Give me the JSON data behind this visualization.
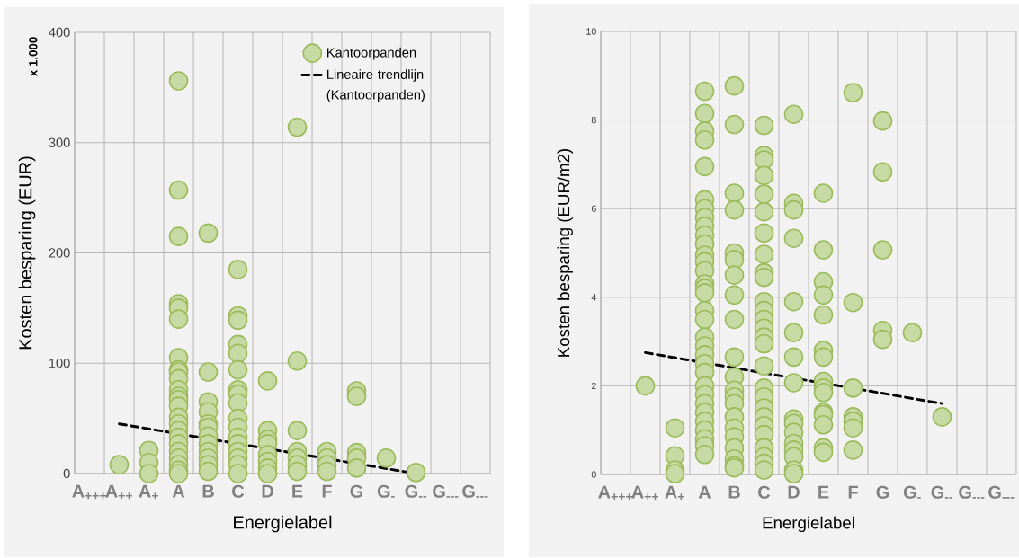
{
  "chart_data": [
    {
      "type": "scatter",
      "xlabel": "Energielabel",
      "ylabel": "Kosten besparing (EUR)",
      "annotations": [
        "x 1.000"
      ],
      "categories": [
        "A$_{+++}$",
        "A$_{++}$",
        "A$_{+}$",
        "A",
        "B",
        "C",
        "D",
        "E",
        "F",
        "G",
        "G$_{-}$",
        "G$_{--}$",
        "G$_{---}$",
        "G$_{---}$"
      ],
      "ylim": [
        0,
        400
      ],
      "yticks": [
        0,
        100,
        200,
        300,
        400
      ],
      "grid": true,
      "legend": "top right",
      "marker": "circle",
      "series": [
        {
          "name": "Kantoorpanden",
          "type": "scatter",
          "color": "#9bbb59",
          "x": [
            "A$_{++}$",
            "A$_{+}$",
            "A$_{+}$",
            "A$_{+}$",
            "A",
            "A",
            "A",
            "A",
            "A",
            "A",
            "A",
            "A",
            "A",
            "A",
            "A",
            "A",
            "A",
            "A",
            "A",
            "A",
            "A",
            "A",
            "A",
            "A",
            "A",
            "A",
            "A",
            "A",
            "B",
            "B",
            "B",
            "B",
            "B",
            "B",
            "B",
            "B",
            "B",
            "B",
            "B",
            "B",
            "C",
            "C",
            "C",
            "C",
            "C",
            "C",
            "C",
            "C",
            "C",
            "C",
            "C",
            "C",
            "C",
            "C",
            "C",
            "C",
            "C",
            "D",
            "D",
            "D",
            "D",
            "D",
            "D",
            "D",
            "D",
            "E",
            "E",
            "E",
            "E",
            "E",
            "E",
            "E",
            "F",
            "F",
            "F",
            "F",
            "G",
            "G",
            "G",
            "G",
            "G",
            "G$_{-}$",
            "G$_{--}$"
          ],
          "values": [
            8,
            21,
            10,
            0,
            356,
            257,
            215,
            154,
            150,
            140,
            105,
            94,
            92,
            86,
            76,
            70,
            67,
            61,
            51,
            45,
            39,
            33,
            27,
            20,
            14,
            8,
            3,
            0,
            218,
            92,
            65,
            56,
            45,
            42,
            34,
            27,
            20,
            14,
            8,
            2,
            185,
            143,
            139,
            117,
            109,
            94,
            76,
            72,
            64,
            50,
            42,
            33,
            27,
            20,
            14,
            8,
            0,
            84,
            39,
            31,
            27,
            17,
            11,
            5,
            0,
            314,
            102,
            39,
            20,
            14,
            8,
            2,
            20,
            14,
            8,
            2,
            75,
            70,
            19,
            14,
            5,
            14,
            1
          ]
        },
        {
          "name": "Lineaire trendlijn (Kantoorpanden)",
          "type": "line",
          "color": "#000000",
          "line_style": "dashed",
          "marker": "none",
          "x": [
            "A$_{++}$",
            "G$_{--}$"
          ],
          "values": [
            45,
            0
          ]
        }
      ]
    },
    {
      "type": "scatter",
      "xlabel": "Energielabel",
      "ylabel": "Kosten besparing (EUR/m2)",
      "categories": [
        "A$_{+++}$",
        "A$_{++}$",
        "A$_{+}$",
        "A",
        "B",
        "C",
        "D",
        "E",
        "F",
        "G",
        "G$_{-}$",
        "G$_{--}$",
        "G$_{---}$",
        "G$_{---}$"
      ],
      "ylim": [
        0,
        10
      ],
      "yticks": [
        0,
        2,
        4,
        6,
        8,
        10
      ],
      "grid": true,
      "marker": "circle",
      "series": [
        {
          "type": "scatter",
          "color": "#9bbb59",
          "x": [
            "A$_{++}$",
            "A$_{+}$",
            "A$_{+}$",
            "A$_{+}$",
            "A$_{+}$",
            "A",
            "A",
            "A",
            "A",
            "A",
            "A",
            "A",
            "A",
            "A",
            "A",
            "A",
            "A",
            "A",
            "A",
            "A",
            "A",
            "A",
            "A",
            "A",
            "A",
            "A",
            "A",
            "A",
            "A",
            "A",
            "A",
            "A",
            "A",
            "A",
            "A",
            "A",
            "A",
            "A",
            "B",
            "B",
            "B",
            "B",
            "B",
            "B",
            "B",
            "B",
            "B",
            "B",
            "B",
            "B",
            "B",
            "B",
            "B",
            "B",
            "B",
            "B",
            "B",
            "B",
            "B",
            "C",
            "C",
            "C",
            "C",
            "C",
            "C",
            "C",
            "C",
            "C",
            "C",
            "C",
            "C",
            "C",
            "C",
            "C",
            "C",
            "C",
            "C",
            "C",
            "C",
            "C",
            "C",
            "C",
            "C",
            "C",
            "C",
            "C",
            "D",
            "D",
            "D",
            "D",
            "D",
            "D",
            "D",
            "D",
            "D",
            "D",
            "D",
            "D",
            "D",
            "D",
            "D",
            "D",
            "E",
            "E",
            "E",
            "E",
            "E",
            "E",
            "E",
            "E",
            "E",
            "E",
            "E",
            "E",
            "E",
            "E",
            "E",
            "F",
            "F",
            "F",
            "F",
            "F",
            "F",
            "F",
            "G",
            "G",
            "G",
            "G",
            "G",
            "G$_{-}$",
            "G$_{--}$"
          ],
          "values": [
            2.0,
            1.05,
            0.42,
            0.1,
            0.02,
            8.65,
            8.15,
            7.75,
            7.55,
            6.95,
            6.2,
            6.0,
            5.8,
            5.6,
            5.4,
            5.2,
            4.95,
            4.8,
            4.6,
            4.3,
            4.2,
            4.1,
            3.7,
            3.5,
            3.1,
            2.9,
            2.7,
            2.5,
            2.3,
            2.0,
            1.8,
            1.6,
            1.4,
            1.2,
            1.0,
            0.8,
            0.65,
            0.45,
            8.77,
            7.9,
            6.35,
            5.97,
            5.0,
            4.85,
            4.5,
            4.05,
            3.5,
            2.65,
            2.2,
            1.9,
            1.75,
            1.6,
            1.3,
            1.05,
            0.85,
            0.6,
            0.35,
            0.2,
            0.15,
            7.88,
            7.2,
            7.1,
            6.75,
            6.33,
            5.93,
            5.45,
            4.97,
            4.55,
            4.45,
            3.9,
            3.7,
            3.5,
            3.3,
            3.1,
            2.95,
            2.45,
            1.95,
            1.75,
            1.5,
            1.3,
            1.1,
            0.9,
            0.6,
            0.4,
            0.25,
            0.1,
            8.13,
            6.12,
            5.97,
            5.33,
            3.9,
            3.2,
            2.65,
            2.07,
            1.25,
            1.15,
            0.95,
            0.7,
            0.55,
            0.4,
            0.1,
            0.02,
            6.35,
            5.07,
            4.35,
            4.05,
            3.6,
            2.8,
            2.65,
            2.1,
            1.95,
            1.85,
            1.4,
            1.35,
            1.12,
            0.6,
            0.5,
            8.62,
            3.88,
            1.95,
            1.3,
            1.2,
            1.05,
            0.55,
            7.98,
            6.83,
            5.07,
            3.25,
            3.05,
            3.2,
            1.3
          ]
        },
        {
          "type": "line",
          "color": "#000000",
          "line_style": "dashed",
          "marker": "none",
          "x": [
            "A$_{++}$",
            "G$_{--}$"
          ],
          "values": [
            2.75,
            1.6
          ]
        }
      ]
    }
  ]
}
